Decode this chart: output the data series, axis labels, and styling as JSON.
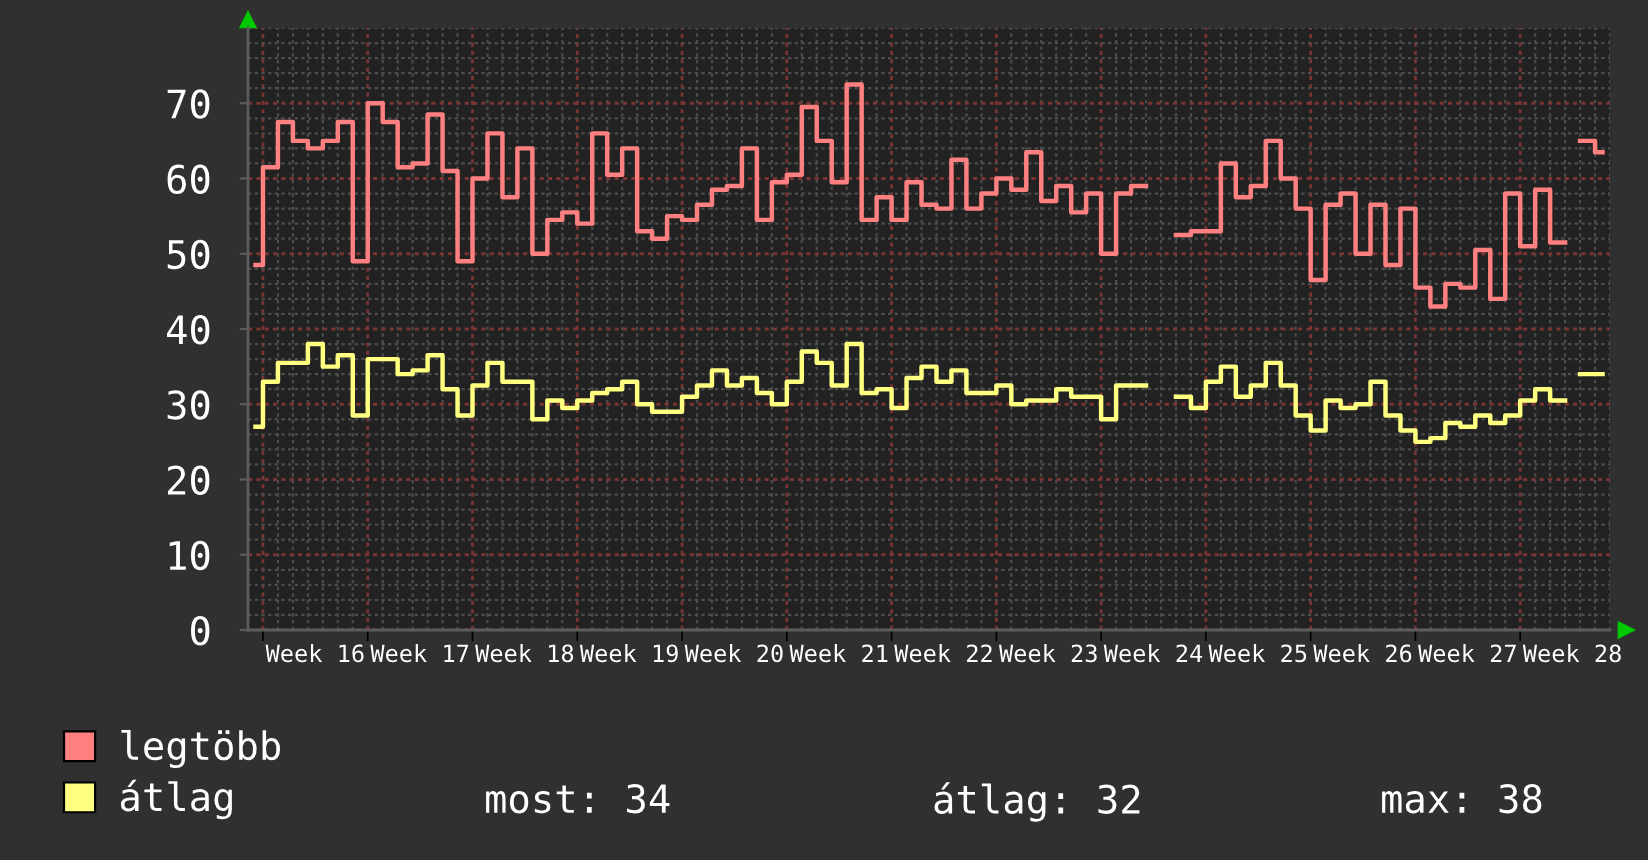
{
  "chart_data": {
    "type": "step",
    "categories": [
      null,
      null,
      null,
      null,
      "Week 16",
      null,
      null,
      null,
      null,
      null,
      null,
      "Week 17",
      null,
      null,
      null,
      null,
      null,
      null,
      "Week 18",
      null,
      null,
      null,
      null,
      null,
      null,
      "Week 19",
      null,
      null,
      null,
      null,
      null,
      null,
      "Week 20",
      null,
      null,
      null,
      null,
      null,
      null,
      "Week 21",
      null,
      null,
      null,
      null,
      null,
      null,
      "Week 22",
      null,
      null,
      null,
      null,
      null,
      null,
      "Week 23",
      null,
      null,
      null,
      null,
      null,
      null,
      "Week 24",
      null,
      null,
      null,
      null,
      null,
      null,
      "Week 25",
      null,
      null,
      null,
      null,
      null,
      null,
      "Week 26",
      null,
      null,
      null,
      null,
      null,
      null,
      "Week 27",
      null,
      null,
      null,
      null,
      null,
      null,
      "Week 28",
      null,
      null
    ],
    "series": [
      {
        "name": "legtöbb",
        "color": "#ff8080",
        "values": [
          48.5,
          61.5,
          67.5,
          65,
          64,
          65,
          67.5,
          49,
          70,
          67.5,
          61.5,
          62,
          68.5,
          61,
          49,
          60,
          66,
          57.5,
          64,
          50,
          54.5,
          55.5,
          54,
          66,
          60.5,
          64,
          53,
          52,
          55,
          54.5,
          56.5,
          58.5,
          59,
          64,
          54.5,
          59.5,
          60.5,
          69.5,
          65,
          59.5,
          72.5,
          54.5,
          57.5,
          54.5,
          59.5,
          56.5,
          56,
          62.5,
          56,
          58,
          60,
          58.5,
          63.5,
          57,
          59,
          55.5,
          58,
          50,
          58,
          59,
          null,
          null,
          52.5,
          53,
          53,
          62,
          57.5,
          59,
          65,
          60,
          56,
          46.5,
          56.5,
          58,
          50,
          56.5,
          48.5,
          56,
          45.5,
          43,
          46,
          45.5,
          50.5,
          44,
          58,
          51,
          58.5,
          51.5,
          null,
          65,
          63.5
        ]
      },
      {
        "name": "átlag",
        "color": "#ffff80",
        "values": [
          27,
          33,
          35.5,
          35.5,
          38,
          35,
          36.5,
          28.5,
          36,
          36,
          34,
          34.5,
          36.5,
          32,
          28.5,
          32.5,
          35.5,
          33,
          33,
          28,
          30.5,
          29.5,
          30.5,
          31.5,
          32,
          33,
          30,
          29,
          29,
          31,
          32.5,
          34.5,
          32.5,
          33.5,
          31.5,
          30,
          33,
          37,
          35.5,
          32.5,
          38,
          31.5,
          32,
          29.5,
          33.5,
          35,
          33,
          34.5,
          31.5,
          31.5,
          32.5,
          30,
          30.5,
          30.5,
          32,
          31,
          31,
          28,
          32.5,
          32.5,
          null,
          null,
          31,
          29.5,
          33,
          35,
          31,
          32.5,
          35.5,
          32.5,
          28.5,
          26.5,
          30.5,
          29.5,
          30,
          33,
          28.5,
          26.5,
          25,
          25.5,
          27.5,
          27,
          28.5,
          27.5,
          28.5,
          30.5,
          32,
          30.5,
          null,
          34,
          34
        ]
      }
    ],
    "ylim": [
      0,
      80
    ],
    "yticks": [
      0,
      10,
      20,
      30,
      40,
      50,
      60,
      70
    ],
    "grid": true,
    "legend": "bottom left",
    "annotations": [
      "most: 34",
      "átlag: 32",
      "max: 38"
    ]
  }
}
